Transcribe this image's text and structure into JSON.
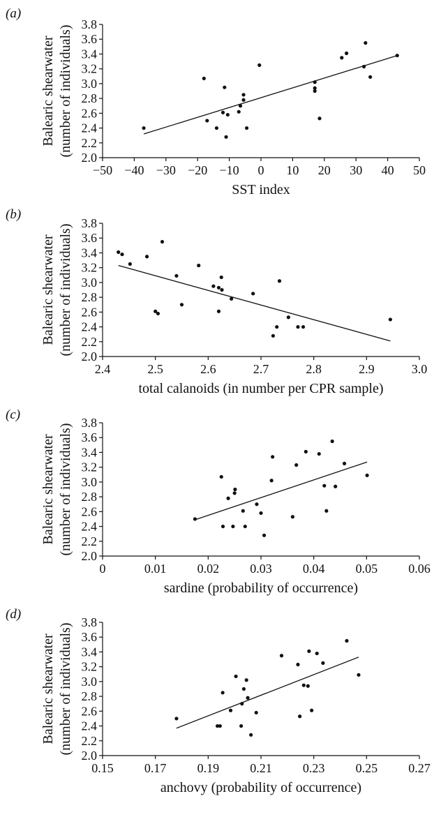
{
  "chart_data": [
    {
      "type": "scatter",
      "panel_label": "(a)",
      "xlabel": "SST index",
      "ylabel_lines": [
        "Balearic shearwater",
        "(number of individuals)"
      ],
      "xlim": [
        -50,
        50
      ],
      "ylim": [
        2.0,
        3.8
      ],
      "xticks": [
        -50,
        -40,
        -30,
        -20,
        -10,
        0,
        10,
        20,
        30,
        40,
        50
      ],
      "xtick_labels": [
        "−50",
        "−40",
        "−30",
        "−20",
        "−10",
        "0",
        "10",
        "20",
        "30",
        "40",
        "50"
      ],
      "yticks": [
        2.0,
        2.2,
        2.4,
        2.6,
        2.8,
        3.0,
        3.2,
        3.4,
        3.6,
        3.8
      ],
      "ytick_labels": [
        "2.0",
        "2.2",
        "2.4",
        "2.6",
        "2.8",
        "3.0",
        "3.2",
        "3.4",
        "3.6",
        "3.8"
      ],
      "points": [
        [
          -37,
          2.4
        ],
        [
          -18,
          3.07
        ],
        [
          -17,
          2.5
        ],
        [
          -14,
          2.4
        ],
        [
          -12,
          2.61
        ],
        [
          -11.5,
          2.95
        ],
        [
          -11,
          2.28
        ],
        [
          -10.5,
          2.58
        ],
        [
          -7,
          2.62
        ],
        [
          -6.5,
          2.7
        ],
        [
          -5.5,
          2.78
        ],
        [
          -5.5,
          2.85
        ],
        [
          -4.5,
          2.4
        ],
        [
          -0.5,
          3.25
        ],
        [
          17,
          2.9
        ],
        [
          17,
          2.94
        ],
        [
          17,
          3.02
        ],
        [
          18.5,
          2.53
        ],
        [
          25.5,
          3.35
        ],
        [
          27,
          3.41
        ],
        [
          32.5,
          3.23
        ],
        [
          33,
          3.55
        ],
        [
          34.5,
          3.09
        ],
        [
          43,
          3.38
        ]
      ],
      "trendline": [
        [
          -37,
          2.32
        ],
        [
          43,
          3.38
        ]
      ]
    },
    {
      "type": "scatter",
      "panel_label": "(b)",
      "xlabel": "total calanoids (in number per CPR sample)",
      "ylabel_lines": [
        "Balearic shearwater",
        "(number of individuals)"
      ],
      "xlim": [
        2.4,
        3.0
      ],
      "ylim": [
        2.0,
        3.8
      ],
      "xticks": [
        2.4,
        2.5,
        2.6,
        2.7,
        2.8,
        2.9,
        3.0
      ],
      "xtick_labels": [
        "2.4",
        "2.5",
        "2.6",
        "2.7",
        "2.8",
        "2.9",
        "3.0"
      ],
      "yticks": [
        2.0,
        2.2,
        2.4,
        2.6,
        2.8,
        3.0,
        3.2,
        3.4,
        3.6,
        3.8
      ],
      "ytick_labels": [
        "2.0",
        "2.2",
        "2.4",
        "2.6",
        "2.8",
        "3.0",
        "3.2",
        "3.4",
        "3.6",
        "3.8"
      ],
      "points": [
        [
          2.43,
          3.41
        ],
        [
          2.437,
          3.38
        ],
        [
          2.452,
          3.25
        ],
        [
          2.484,
          3.35
        ],
        [
          2.5,
          2.61
        ],
        [
          2.505,
          2.58
        ],
        [
          2.513,
          3.55
        ],
        [
          2.54,
          3.09
        ],
        [
          2.55,
          2.7
        ],
        [
          2.582,
          3.23
        ],
        [
          2.61,
          2.95
        ],
        [
          2.62,
          2.93
        ],
        [
          2.62,
          2.61
        ],
        [
          2.625,
          3.07
        ],
        [
          2.626,
          2.9
        ],
        [
          2.644,
          2.78
        ],
        [
          2.685,
          2.85
        ],
        [
          2.723,
          2.28
        ],
        [
          2.73,
          2.4
        ],
        [
          2.735,
          3.02
        ],
        [
          2.752,
          2.53
        ],
        [
          2.77,
          2.4
        ],
        [
          2.78,
          2.4
        ],
        [
          2.945,
          2.5
        ]
      ],
      "trendline": [
        [
          2.43,
          3.23
        ],
        [
          2.945,
          2.21
        ]
      ]
    },
    {
      "type": "scatter",
      "panel_label": "(c)",
      "xlabel": "sardine (probability of occurrence)",
      "ylabel_lines": [
        "Balearic shearwater",
        "(number of individuals)"
      ],
      "xlim": [
        0,
        0.06
      ],
      "ylim": [
        2.0,
        3.8
      ],
      "xticks": [
        0,
        0.01,
        0.02,
        0.03,
        0.04,
        0.05,
        0.06
      ],
      "xtick_labels": [
        "0",
        "0.01",
        "0.02",
        "0.03",
        "0.04",
        "0.05",
        "0.06"
      ],
      "yticks": [
        2.0,
        2.2,
        2.4,
        2.6,
        2.8,
        3.0,
        3.2,
        3.4,
        3.6,
        3.8
      ],
      "ytick_labels": [
        "2.0",
        "2.2",
        "2.4",
        "2.6",
        "2.8",
        "3.0",
        "3.2",
        "3.4",
        "3.6",
        "3.8"
      ],
      "points": [
        [
          0.0175,
          2.5
        ],
        [
          0.0225,
          3.07
        ],
        [
          0.0228,
          2.4
        ],
        [
          0.0238,
          2.78
        ],
        [
          0.0247,
          2.4
        ],
        [
          0.025,
          2.85
        ],
        [
          0.0251,
          2.9
        ],
        [
          0.0266,
          2.61
        ],
        [
          0.027,
          2.4
        ],
        [
          0.0292,
          2.7
        ],
        [
          0.03,
          2.58
        ],
        [
          0.0306,
          2.28
        ],
        [
          0.032,
          3.02
        ],
        [
          0.0322,
          3.34
        ],
        [
          0.036,
          2.53
        ],
        [
          0.0367,
          3.23
        ],
        [
          0.0385,
          3.41
        ],
        [
          0.041,
          3.38
        ],
        [
          0.042,
          2.95
        ],
        [
          0.0424,
          2.61
        ],
        [
          0.0435,
          3.55
        ],
        [
          0.0441,
          2.94
        ],
        [
          0.0458,
          3.25
        ],
        [
          0.0501,
          3.09
        ]
      ],
      "trendline": [
        [
          0.0175,
          2.49
        ],
        [
          0.0501,
          3.27
        ]
      ]
    },
    {
      "type": "scatter",
      "panel_label": "(d)",
      "xlabel": "anchovy (probability of occurrence)",
      "ylabel_lines": [
        "Balearic shearwater",
        "(number of individuals)"
      ],
      "xlim": [
        0.15,
        0.27
      ],
      "ylim": [
        2.0,
        3.8
      ],
      "xticks": [
        0.15,
        0.17,
        0.19,
        0.21,
        0.23,
        0.25,
        0.27
      ],
      "xtick_labels": [
        "0.15",
        "0.17",
        "0.19",
        "0.21",
        "0.23",
        "0.25",
        "0.27"
      ],
      "yticks": [
        2.0,
        2.2,
        2.4,
        2.6,
        2.8,
        3.0,
        3.2,
        3.4,
        3.6,
        3.8
      ],
      "ytick_labels": [
        "2.0",
        "2.2",
        "2.4",
        "2.6",
        "2.8",
        "3.0",
        "3.2",
        "3.4",
        "3.6",
        "3.8"
      ],
      "points": [
        [
          0.178,
          2.5
        ],
        [
          0.1935,
          2.4
        ],
        [
          0.1945,
          2.4
        ],
        [
          0.1955,
          2.85
        ],
        [
          0.1985,
          2.61
        ],
        [
          0.2005,
          3.07
        ],
        [
          0.2025,
          2.4
        ],
        [
          0.2028,
          2.7
        ],
        [
          0.2035,
          2.9
        ],
        [
          0.2045,
          3.02
        ],
        [
          0.205,
          2.78
        ],
        [
          0.2062,
          2.28
        ],
        [
          0.2082,
          2.58
        ],
        [
          0.2178,
          3.35
        ],
        [
          0.224,
          3.23
        ],
        [
          0.2247,
          2.53
        ],
        [
          0.2262,
          2.95
        ],
        [
          0.2278,
          2.94
        ],
        [
          0.2282,
          3.41
        ],
        [
          0.2292,
          2.61
        ],
        [
          0.2312,
          3.38
        ],
        [
          0.2335,
          3.25
        ],
        [
          0.2425,
          3.55
        ],
        [
          0.247,
          3.09
        ]
      ],
      "trendline": [
        [
          0.178,
          2.37
        ],
        [
          0.247,
          3.33
        ]
      ]
    }
  ]
}
